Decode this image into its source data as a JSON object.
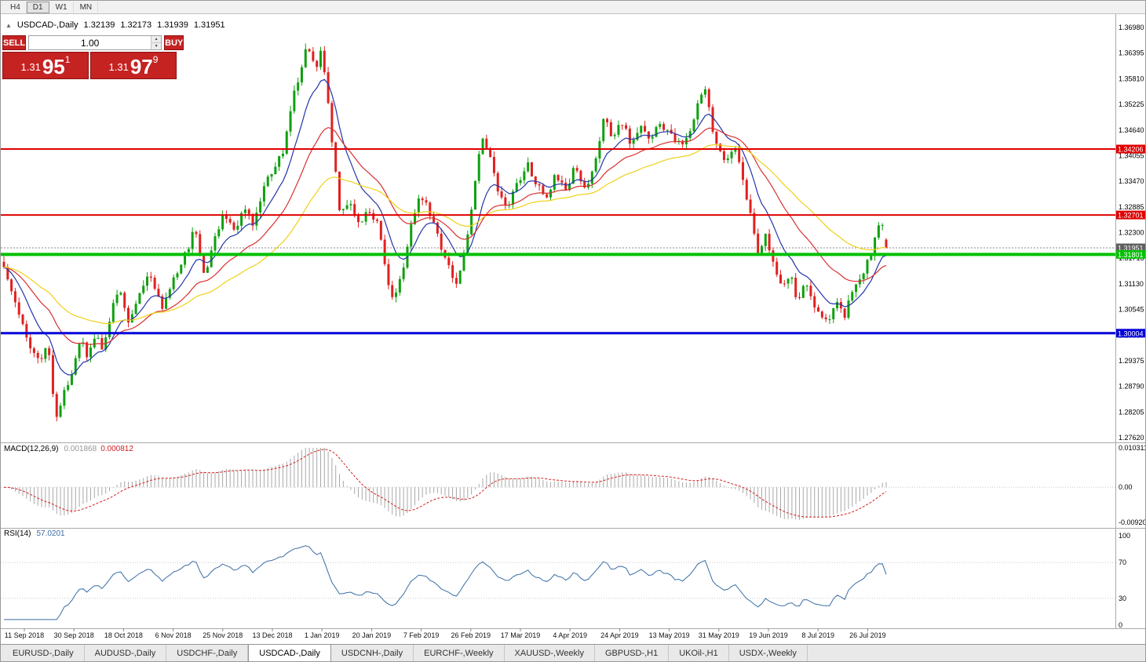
{
  "toolbar": {
    "timeframes": [
      {
        "label": "H4",
        "active": false
      },
      {
        "label": "D1",
        "active": true
      },
      {
        "label": "W1",
        "active": false
      },
      {
        "label": "MN",
        "active": false
      }
    ]
  },
  "header": {
    "symbol": "USDCAD-,Daily",
    "open": "1.32139",
    "high": "1.32173",
    "low": "1.31939",
    "close": "1.31951"
  },
  "trade_panel": {
    "sell_label": "SELL",
    "buy_label": "BUY",
    "volume": "1.00",
    "sell_price": {
      "base": "1.31",
      "pips": "95",
      "pipette": "1"
    },
    "buy_price": {
      "base": "1.31",
      "pips": "97",
      "pipette": "9"
    }
  },
  "macd": {
    "label": "MACD(12,26,9)",
    "main_value": "0.001868",
    "signal_value": "0.000812",
    "scale": {
      "max": "0.010311",
      "mid": "0.00",
      "min": "-0.009203"
    },
    "hist_color": "#a8a8a8",
    "signal_color": "#d22020"
  },
  "rsi": {
    "label": "RSI(14)",
    "value": "57.0201",
    "levels": [
      100,
      70,
      30,
      0
    ],
    "color": "#3a6ea5"
  },
  "price_scale": {
    "labels": [
      "1.36980",
      "1.36395",
      "1.35810",
      "1.35225",
      "1.34640",
      "1.34055",
      "1.33470",
      "1.32885",
      "1.32300",
      "1.31715",
      "1.31130",
      "1.30545",
      "1.29960",
      "1.29375",
      "1.28790",
      "1.28205",
      "1.27620"
    ]
  },
  "tabs": [
    {
      "label": "EURUSD-,Daily",
      "active": false
    },
    {
      "label": "AUDUSD-,Daily",
      "active": false
    },
    {
      "label": "USDCHF-,Daily",
      "active": false
    },
    {
      "label": "USDCAD-,Daily",
      "active": true
    },
    {
      "label": "USDCNH-,Daily",
      "active": false
    },
    {
      "label": "EURCHF-,Weekly",
      "active": false
    },
    {
      "label": "XAUUSD-,Weekly",
      "active": false
    },
    {
      "label": "GBPUSD-,H1",
      "active": false
    },
    {
      "label": "UKOil-,H1",
      "active": false
    },
    {
      "label": "USDX-,Weekly",
      "active": false
    }
  ],
  "chart_data": {
    "type": "candlestick",
    "symbol": "USDCAD",
    "timeframe": "Daily",
    "title": "USDCAD-,Daily",
    "price_axis": {
      "min": 1.2762,
      "max": 1.3698,
      "tick_step": 0.00585
    },
    "dates": [
      "11 Sep 2018",
      "30 Sep 2018",
      "18 Oct 2018",
      "6 Nov 2018",
      "25 Nov 2018",
      "13 Dec 2018",
      "1 Jan 2019",
      "20 Jan 2019",
      "7 Feb 2019",
      "26 Feb 2019",
      "17 Mar 2019",
      "4 Apr 2019",
      "24 Apr 2019",
      "13 May 2019",
      "31 May 2019",
      "19 Jun 2019",
      "8 Jul 2019",
      "26 Jul 2019"
    ],
    "candle_count": 235,
    "last_candle": {
      "open": 1.32139,
      "high": 1.32173,
      "low": 1.31939,
      "close": 1.31951
    },
    "current_price": 1.31951,
    "current_price_label": "1.31951",
    "current_price_tag_color": "#5f5f5f",
    "up_color": "#0fa00f",
    "down_color": "#e02020",
    "close_waypoints": [
      [
        0.0,
        1.3145
      ],
      [
        0.014,
        1.306
      ],
      [
        0.028,
        1.298
      ],
      [
        0.041,
        1.293
      ],
      [
        0.05,
        1.2975
      ],
      [
        0.059,
        1.2805
      ],
      [
        0.068,
        1.286
      ],
      [
        0.08,
        1.2935
      ],
      [
        0.088,
        1.298
      ],
      [
        0.096,
        1.294
      ],
      [
        0.104,
        1.301
      ],
      [
        0.112,
        1.296
      ],
      [
        0.122,
        1.305
      ],
      [
        0.13,
        1.311
      ],
      [
        0.141,
        1.302
      ],
      [
        0.152,
        1.309
      ],
      [
        0.165,
        1.3135
      ],
      [
        0.179,
        1.306
      ],
      [
        0.192,
        1.312
      ],
      [
        0.206,
        1.318
      ],
      [
        0.217,
        1.3245
      ],
      [
        0.228,
        1.312
      ],
      [
        0.238,
        1.3205
      ],
      [
        0.25,
        1.328
      ],
      [
        0.262,
        1.323
      ],
      [
        0.272,
        1.3295
      ],
      [
        0.283,
        1.3245
      ],
      [
        0.294,
        1.333
      ],
      [
        0.306,
        1.338
      ],
      [
        0.317,
        1.342
      ],
      [
        0.327,
        1.353
      ],
      [
        0.339,
        1.362
      ],
      [
        0.345,
        1.366
      ],
      [
        0.352,
        1.36
      ],
      [
        0.359,
        1.364
      ],
      [
        0.366,
        1.356
      ],
      [
        0.372,
        1.344
      ],
      [
        0.381,
        1.327
      ],
      [
        0.392,
        1.33
      ],
      [
        0.404,
        1.325
      ],
      [
        0.415,
        1.3285
      ],
      [
        0.425,
        1.324
      ],
      [
        0.434,
        1.312
      ],
      [
        0.441,
        1.3075
      ],
      [
        0.45,
        1.313
      ],
      [
        0.461,
        1.324
      ],
      [
        0.472,
        1.332
      ],
      [
        0.484,
        1.327
      ],
      [
        0.495,
        1.32
      ],
      [
        0.505,
        1.315
      ],
      [
        0.514,
        1.3105
      ],
      [
        0.523,
        1.32
      ],
      [
        0.532,
        1.332
      ],
      [
        0.541,
        1.345
      ],
      [
        0.55,
        1.342
      ],
      [
        0.559,
        1.333
      ],
      [
        0.57,
        1.329
      ],
      [
        0.582,
        1.334
      ],
      [
        0.593,
        1.339
      ],
      [
        0.603,
        1.334
      ],
      [
        0.615,
        1.331
      ],
      [
        0.626,
        1.3365
      ],
      [
        0.637,
        1.333
      ],
      [
        0.648,
        1.338
      ],
      [
        0.659,
        1.333
      ],
      [
        0.671,
        1.339
      ],
      [
        0.68,
        1.35
      ],
      [
        0.689,
        1.344
      ],
      [
        0.699,
        1.348
      ],
      [
        0.71,
        1.344
      ],
      [
        0.722,
        1.347
      ],
      [
        0.733,
        1.344
      ],
      [
        0.744,
        1.348
      ],
      [
        0.754,
        1.345
      ],
      [
        0.766,
        1.343
      ],
      [
        0.778,
        1.347
      ],
      [
        0.788,
        1.353
      ],
      [
        0.794,
        1.3555
      ],
      [
        0.802,
        1.348
      ],
      [
        0.81,
        1.342
      ],
      [
        0.819,
        1.338
      ],
      [
        0.828,
        1.344
      ],
      [
        0.837,
        1.335
      ],
      [
        0.846,
        1.327
      ],
      [
        0.855,
        1.318
      ],
      [
        0.864,
        1.323
      ],
      [
        0.873,
        1.315
      ],
      [
        0.882,
        1.311
      ],
      [
        0.891,
        1.314
      ],
      [
        0.899,
        1.308
      ],
      [
        0.908,
        1.3115
      ],
      [
        0.917,
        1.306
      ],
      [
        0.926,
        1.3045
      ],
      [
        0.935,
        1.3025
      ],
      [
        0.944,
        1.307
      ],
      [
        0.953,
        1.3045
      ],
      [
        0.962,
        1.309
      ],
      [
        0.971,
        1.313
      ],
      [
        0.98,
        1.317
      ],
      [
        0.985,
        1.319
      ],
      [
        0.99,
        1.324
      ],
      [
        0.994,
        1.327
      ],
      [
        0.997,
        1.323
      ],
      [
        1.0,
        1.31951
      ]
    ],
    "moving_averages": [
      {
        "period": 10,
        "type": "ema",
        "color": "#2335a8"
      },
      {
        "period": 25,
        "type": "ema",
        "color": "#d83030"
      },
      {
        "period": 50,
        "type": "ema",
        "color": "#efd117"
      }
    ],
    "horizontal_lines": [
      {
        "name": "resistance-line-upper",
        "price": 1.34206,
        "label": "1.34206",
        "color": "#e00000",
        "width": 2
      },
      {
        "name": "resistance-line-lower",
        "price": 1.32701,
        "label": "1.32701",
        "color": "#e00000",
        "width": 2
      },
      {
        "name": "support-line-green",
        "price": 1.31801,
        "label": "1.31801",
        "color": "#00c000",
        "width": 4
      },
      {
        "name": "support-line-blue",
        "price": 1.30004,
        "label": "1.30004",
        "color": "#0000d8",
        "width": 3
      }
    ],
    "indicators": {
      "macd": {
        "fast": 12,
        "slow": 26,
        "signal": 9,
        "current_main": 0.001868,
        "current_signal": 0.000812,
        "axis_max": 0.010311,
        "axis_min": -0.009203
      },
      "rsi": {
        "period": 14,
        "current": 57.0201,
        "axis": [
          0,
          100
        ],
        "levels": [
          30,
          70
        ]
      }
    }
  }
}
